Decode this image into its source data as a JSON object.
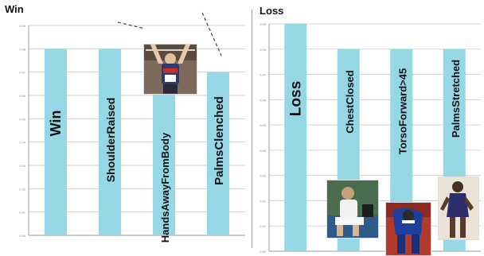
{
  "colors": {
    "bar": "#95d7e4",
    "grid": "#d3d3d3",
    "axis": "#9a9a9a",
    "text": "#111111"
  },
  "chart_data": [
    {
      "type": "bar",
      "title": "Win",
      "categories": [
        "Win",
        "ShoulderRaised",
        "HandsAwayFromBody",
        "PalmsClenched"
      ],
      "values": [
        0.98,
        0.98,
        0.98,
        0.97
      ],
      "ylim": [
        0.9,
        0.99
      ],
      "grid": true,
      "orientation_of_labels": "vertical-inside-bars"
    },
    {
      "type": "bar",
      "title": "Loss",
      "categories": [
        "Loss",
        "ChestClosed",
        "TorsoForward>45",
        "PalmsStretched"
      ],
      "values": [
        0.99,
        0.98,
        0.98,
        0.98
      ],
      "ylim": [
        0.9,
        0.99
      ],
      "grid": true,
      "orientation_of_labels": "vertical-inside-bars"
    }
  ]
}
